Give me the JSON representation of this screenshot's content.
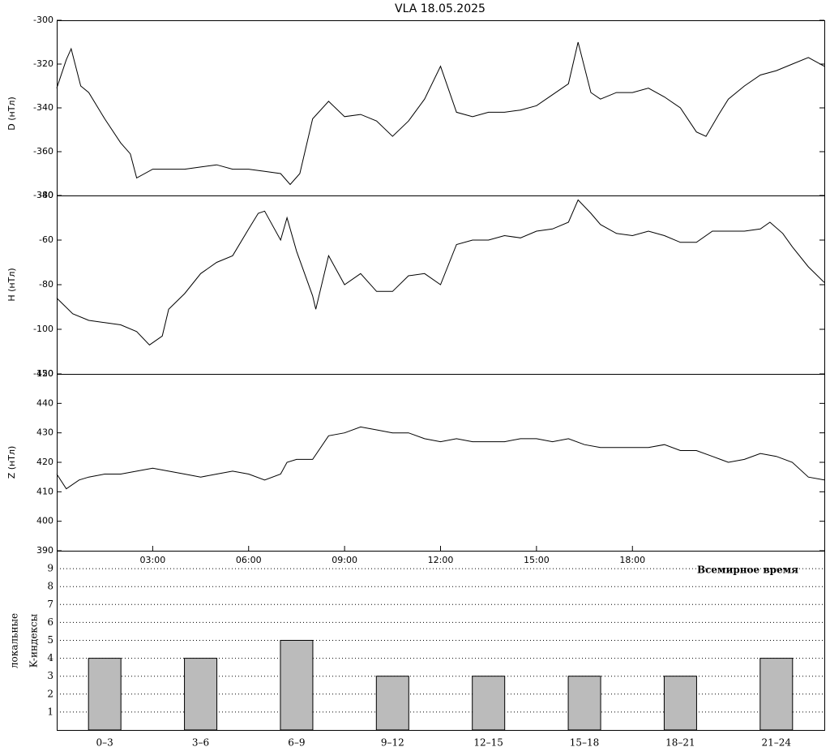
{
  "chart_data": [
    {
      "type": "line",
      "title": "VLA   18.05.2025",
      "ylabel": "D (нТл)",
      "color": "#000000",
      "xlim": [
        0,
        24
      ],
      "ylim": [
        -380,
        -300
      ],
      "yticks": [
        -380,
        -360,
        -340,
        -320,
        -300
      ],
      "x": [
        0,
        0.3,
        0.45,
        0.75,
        1,
        1.5,
        2,
        2.3,
        2.5,
        3,
        4,
        4.5,
        5,
        5.5,
        6,
        6.5,
        7,
        7.3,
        7.6,
        8,
        8.5,
        9,
        9.5,
        10,
        10.5,
        11,
        11.5,
        12,
        12.5,
        13,
        13.5,
        14,
        14.5,
        15,
        15.5,
        16,
        16.3,
        16.7,
        17,
        17.5,
        18,
        18.5,
        19,
        19.5,
        20,
        20.3,
        20.7,
        21,
        21.5,
        22,
        22.5,
        23,
        23.5,
        24
      ],
      "values": [
        -331,
        -318,
        -313,
        -330,
        -333,
        -345,
        -356,
        -361,
        -372,
        -368,
        -368,
        -367,
        -366,
        -368,
        -368,
        -369,
        -370,
        -375,
        -370,
        -345,
        -337,
        -344,
        -343,
        -346,
        -353,
        -346,
        -336,
        -321,
        -342,
        -344,
        -342,
        -342,
        -341,
        -339,
        -334,
        -329,
        -310,
        -333,
        -336,
        -333,
        -333,
        -331,
        -335,
        -340,
        -351,
        -353,
        -343,
        -336,
        -330,
        -325,
        -323,
        -320,
        -317,
        -321
      ]
    },
    {
      "type": "line",
      "ylabel": "H (нТл)",
      "color": "#000000",
      "xlim": [
        0,
        24
      ],
      "ylim": [
        -120,
        -40
      ],
      "yticks": [
        -120,
        -100,
        -80,
        -60,
        -40
      ],
      "x": [
        0,
        0.5,
        1,
        1.5,
        2,
        2.5,
        2.9,
        3.3,
        3.5,
        4,
        4.5,
        5,
        5.5,
        6,
        6.3,
        6.5,
        7,
        7.2,
        7.5,
        8,
        8.1,
        8.5,
        9,
        9.5,
        10,
        10.5,
        11,
        11.5,
        12,
        12.5,
        13,
        13.5,
        14,
        14.5,
        15,
        15.5,
        16,
        16.3,
        16.7,
        17,
        17.5,
        18,
        18.5,
        19,
        19.5,
        20,
        20.5,
        21,
        21.5,
        22,
        22.3,
        22.7,
        23,
        23.5,
        24
      ],
      "values": [
        -86,
        -93,
        -96,
        -97,
        -98,
        -101,
        -107,
        -103,
        -91,
        -84,
        -75,
        -70,
        -67,
        -55,
        -48,
        -47,
        -60,
        -50,
        -65,
        -85,
        -91,
        -67,
        -80,
        -75,
        -83,
        -83,
        -76,
        -75,
        -80,
        -62,
        -60,
        -60,
        -58,
        -59,
        -56,
        -55,
        -52,
        -42,
        -48,
        -53,
        -57,
        -58,
        -56,
        -58,
        -61,
        -61,
        -56,
        -56,
        -56,
        -55,
        -52,
        -57,
        -63,
        -72,
        -79
      ]
    },
    {
      "type": "line",
      "ylabel": "Z (нТл)",
      "xlabel": "Всемирное время",
      "color": "#000000",
      "xlim": [
        0,
        24
      ],
      "ylim": [
        390,
        450
      ],
      "yticks": [
        390,
        400,
        410,
        420,
        430,
        440,
        450
      ],
      "xticks": [
        {
          "value": 3,
          "label": "03:00"
        },
        {
          "value": 6,
          "label": "06:00"
        },
        {
          "value": 9,
          "label": "09:00"
        },
        {
          "value": 12,
          "label": "12:00"
        },
        {
          "value": 15,
          "label": "15:00"
        },
        {
          "value": 18,
          "label": "18:00"
        }
      ],
      "x": [
        0,
        0.3,
        0.7,
        1,
        1.5,
        2,
        2.5,
        3,
        3.5,
        4,
        4.5,
        5,
        5.5,
        6,
        6.5,
        7,
        7.2,
        7.5,
        8,
        8.5,
        9,
        9.5,
        10,
        10.5,
        11,
        11.5,
        12,
        12.5,
        13,
        13.5,
        14,
        14.5,
        15,
        15.5,
        16,
        16.5,
        17,
        17.5,
        18,
        18.5,
        19,
        19.5,
        20,
        20.5,
        21,
        21.5,
        22,
        22.5,
        23,
        23.5,
        24
      ],
      "values": [
        416,
        411,
        414,
        415,
        416,
        416,
        417,
        418,
        417,
        416,
        415,
        416,
        417,
        416,
        414,
        416,
        420,
        421,
        421,
        429,
        430,
        432,
        431,
        430,
        430,
        428,
        427,
        428,
        427,
        427,
        427,
        428,
        428,
        427,
        428,
        426,
        425,
        425,
        425,
        425,
        426,
        424,
        424,
        422,
        420,
        421,
        423,
        422,
        420,
        415,
        414
      ]
    },
    {
      "type": "bar",
      "ylabel": [
        "локальные",
        "K-индексы"
      ],
      "color": "#bbbbbb",
      "grid": true,
      "categories": [
        "0–3",
        "3–6",
        "6–9",
        "9–12",
        "12–15",
        "15–18",
        "18–21",
        "21–24"
      ],
      "values": [
        4,
        4,
        5,
        3,
        3,
        3,
        3,
        4
      ],
      "ylim": [
        0,
        10
      ],
      "yticks": [
        1,
        2,
        3,
        4,
        5,
        6,
        7,
        8,
        9
      ]
    }
  ]
}
